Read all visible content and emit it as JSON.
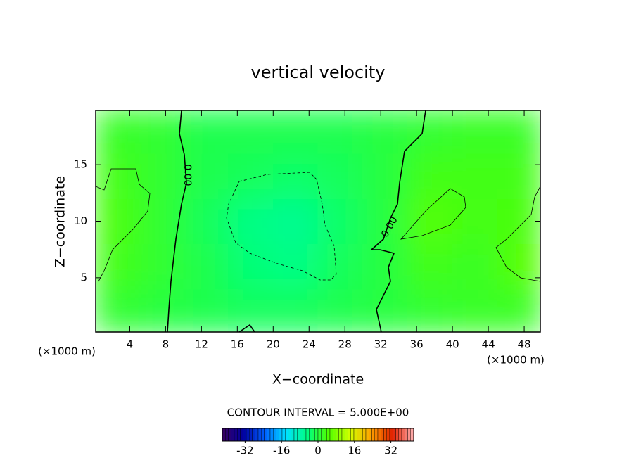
{
  "chart_data": {
    "type": "contour",
    "title": "vertical velocity",
    "xlabel": "X−coordinate",
    "ylabel": "Z−coordinate",
    "x_unit": "(×1000 m)",
    "footer": "CONTOUR INTERVAL = 5.000E+00",
    "contour_labels": [
      "0.00",
      "0.00"
    ],
    "xlim": [
      0.2,
      49.8
    ],
    "xticks": [
      4,
      8,
      12,
      16,
      20,
      24,
      28,
      32,
      36,
      40,
      44,
      48
    ],
    "ylim": [
      0.2,
      19.8
    ],
    "yticks": [
      5,
      10,
      15
    ],
    "x": [
      2.5,
      7.5,
      12.5,
      17.5,
      22.5,
      27.5,
      32.5,
      37.5,
      42.5,
      47.5
    ],
    "y": [
      2,
      6,
      10,
      14,
      18
    ],
    "z": [
      [
        1,
        0,
        -1,
        -2,
        -2,
        -1,
        0,
        1,
        2,
        2
      ],
      [
        3,
        1,
        -1,
        -4,
        -5,
        -2,
        0,
        3,
        2,
        5
      ],
      [
        4,
        1,
        -2,
        -5,
        -6,
        -3,
        0,
        5,
        3,
        4
      ],
      [
        3,
        1,
        -1,
        -2,
        -3,
        -2,
        0,
        3,
        3,
        3
      ],
      [
        2,
        1,
        -1,
        -1,
        -1,
        -1,
        0,
        1,
        2,
        2
      ]
    ],
    "clim": [
      -42,
      42
    ],
    "cticks": [
      -32,
      -16,
      0,
      16,
      32
    ],
    "colormap": [
      "#3a0060",
      "#0000a0",
      "#0060ff",
      "#00e0ff",
      "#00ff80",
      "#50ff00",
      "#d0ff00",
      "#ffa000",
      "#e02000",
      "#ffb0b0"
    ]
  }
}
